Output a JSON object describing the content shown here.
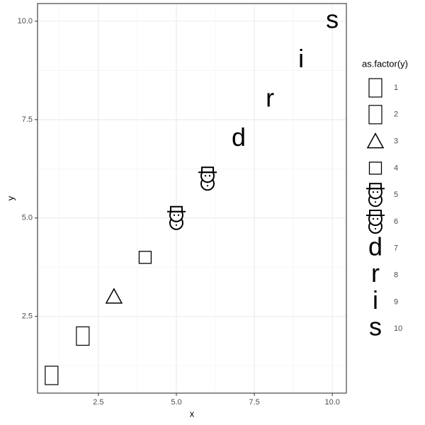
{
  "chart_data": {
    "type": "scatter",
    "x_label": "x",
    "y_label": "y",
    "x": [
      1,
      2,
      3,
      4,
      5,
      6,
      7,
      8,
      9,
      10
    ],
    "y": [
      1,
      2,
      3,
      4,
      5,
      6,
      7,
      8,
      9,
      10
    ],
    "shapes": [
      "missing",
      "missing",
      "triangle",
      "square",
      "snowman",
      "snowman",
      "d",
      "r",
      "i",
      "s"
    ],
    "color": "#000000",
    "legend_title": "as.factor(y)",
    "legend_labels": [
      "1",
      "2",
      "3",
      "4",
      "5",
      "6",
      "7",
      "8",
      "9",
      "10"
    ],
    "legend_position": "right",
    "xlim": [
      0.55,
      10.45
    ],
    "ylim": [
      0.55,
      10.45
    ],
    "xticks": [
      {
        "value": 2.5,
        "label": "2.5"
      },
      {
        "value": 5,
        "label": "5.0"
      },
      {
        "value": 7.5,
        "label": "7.5"
      },
      {
        "value": 10,
        "label": "10.0"
      }
    ],
    "yticks": [
      {
        "value": 2.5,
        "label": "2.5"
      },
      {
        "value": 5,
        "label": "5.0"
      },
      {
        "value": 7.5,
        "label": "7.5"
      },
      {
        "value": 10,
        "label": "10.0"
      }
    ],
    "xminor": [
      1.25,
      3.75,
      6.25,
      8.75
    ],
    "yminor": [
      1.25,
      3.75,
      6.25,
      8.75
    ],
    "grid": true
  }
}
